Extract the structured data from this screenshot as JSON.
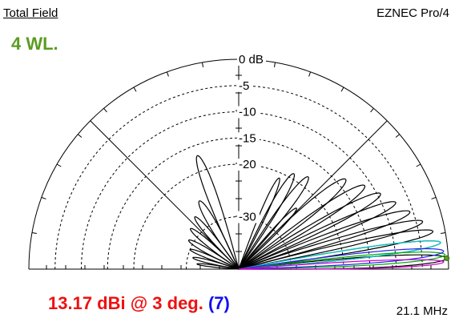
{
  "header": {
    "field_title": "Total Field",
    "app_name": "EZNEC Pro/4",
    "wavelength_label": "4 WL."
  },
  "footer": {
    "gain_text": "13.17 dBi @ 3 deg.",
    "trace_number": "(7)",
    "frequency": "21.1 MHz"
  },
  "colors": {
    "wavelength": "#5b9b22",
    "gain": "#ee1111",
    "trace_number": "#1111ee"
  },
  "chart_data": {
    "type": "polar-elevation",
    "scale_max_db": 0,
    "scale_min_db": -40,
    "ring_labels": [
      "0 dB",
      "-5",
      "-10",
      "-15",
      "-20",
      "-30"
    ],
    "ring_db": [
      0,
      -5,
      -10,
      -15,
      -20,
      -30
    ],
    "series": [
      {
        "color": "#000000",
        "lobes": [
          {
            "elev": 40.0,
            "peak_db": -13.4,
            "width": 5.5
          },
          {
            "elev": 33.5,
            "peak_db": -11.2,
            "width": 5.0
          },
          {
            "elev": 28.0,
            "peak_db": -9.4,
            "width": 4.5
          },
          {
            "elev": 23.0,
            "peak_db": -7.5,
            "width": 4.2
          },
          {
            "elev": 18.5,
            "peak_db": -5.6,
            "width": 4.0
          },
          {
            "elev": 14.5,
            "peak_db": -3.8,
            "width": 3.6
          },
          {
            "elev": 11.0,
            "peak_db": -2.3,
            "width": 3.4
          },
          {
            "elev": 7.5,
            "peak_db": -1.2,
            "width": 3.0
          },
          {
            "elev": 3.0,
            "peak_db": -0.3,
            "width": 3.2
          },
          {
            "elev": 53.0,
            "peak_db": -18.0,
            "width": 5.0
          },
          {
            "elev": 60.0,
            "peak_db": -19.0,
            "width": 5.0
          },
          {
            "elev": 66.0,
            "peak_db": -21.0,
            "width": 4.0
          },
          {
            "elev": 46.5,
            "peak_db": -24.0,
            "width": 4.0
          },
          {
            "elev": 110.0,
            "peak_db": -17.0,
            "width": 5.0
          },
          {
            "elev": 120.0,
            "peak_db": -25.0,
            "width": 6.0
          },
          {
            "elev": 130.0,
            "peak_db": -27.0,
            "width": 5.0
          },
          {
            "elev": 140.0,
            "peak_db": -28.0,
            "width": 5.0
          },
          {
            "elev": 150.0,
            "peak_db": -29.0,
            "width": 5.0
          },
          {
            "elev": 158.0,
            "peak_db": -30.0,
            "width": 4.0
          },
          {
            "elev": 166.0,
            "peak_db": -31.0,
            "width": 4.0
          },
          {
            "elev": 173.0,
            "peak_db": -32.0,
            "width": 3.0
          }
        ]
      },
      {
        "color": "#00cccc",
        "lobes": [
          {
            "elev": 7.5,
            "peak_db": -1.2,
            "width": 3.0
          }
        ]
      },
      {
        "color": "#00aa00",
        "lobes": [
          {
            "elev": 4.0,
            "peak_db": -0.6,
            "width": 3.0
          }
        ]
      },
      {
        "color": "#2222ee",
        "lobes": [
          {
            "elev": 5.0,
            "peak_db": -0.8,
            "width": 3.2
          }
        ]
      },
      {
        "color": "#cc00cc",
        "lobes": [
          {
            "elev": 2.0,
            "peak_db": -0.9,
            "width": 2.2
          }
        ]
      }
    ]
  }
}
